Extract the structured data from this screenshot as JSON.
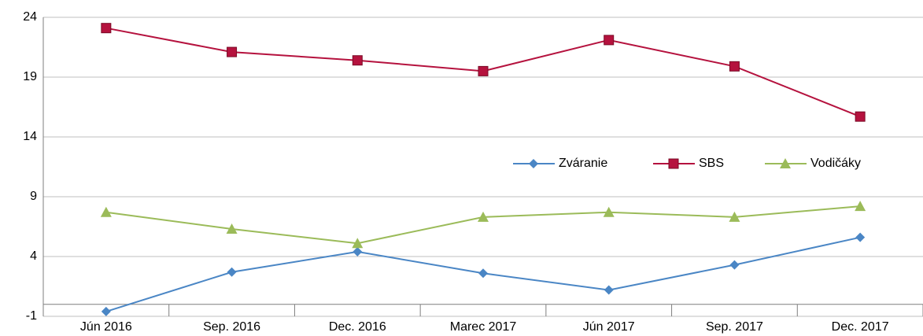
{
  "chart_data": {
    "type": "line",
    "categories": [
      "Jún 2016",
      "Sep. 2016",
      "Dec. 2016",
      "Marec 2017",
      "Jún 2017",
      "Sep. 2017",
      "Dec. 2017"
    ],
    "series": [
      {
        "name": "Zváranie",
        "color": "#4a86c5",
        "marker": "diamond",
        "values": [
          -0.6,
          2.7,
          4.4,
          2.6,
          1.2,
          3.3,
          5.6
        ]
      },
      {
        "name": "SBS",
        "color": "#b5123e",
        "marker": "square",
        "values": [
          23.1,
          21.1,
          20.4,
          19.5,
          22.1,
          19.9,
          15.7
        ]
      },
      {
        "name": "Vodičáky",
        "color": "#9bbb59",
        "marker": "triangle",
        "values": [
          7.7,
          6.3,
          5.1,
          7.3,
          7.7,
          7.3,
          8.2
        ]
      }
    ],
    "ylim": [
      -1,
      24
    ],
    "yticks": [
      -1,
      4,
      9,
      14,
      19,
      24
    ],
    "grid": true,
    "legend": "right"
  }
}
